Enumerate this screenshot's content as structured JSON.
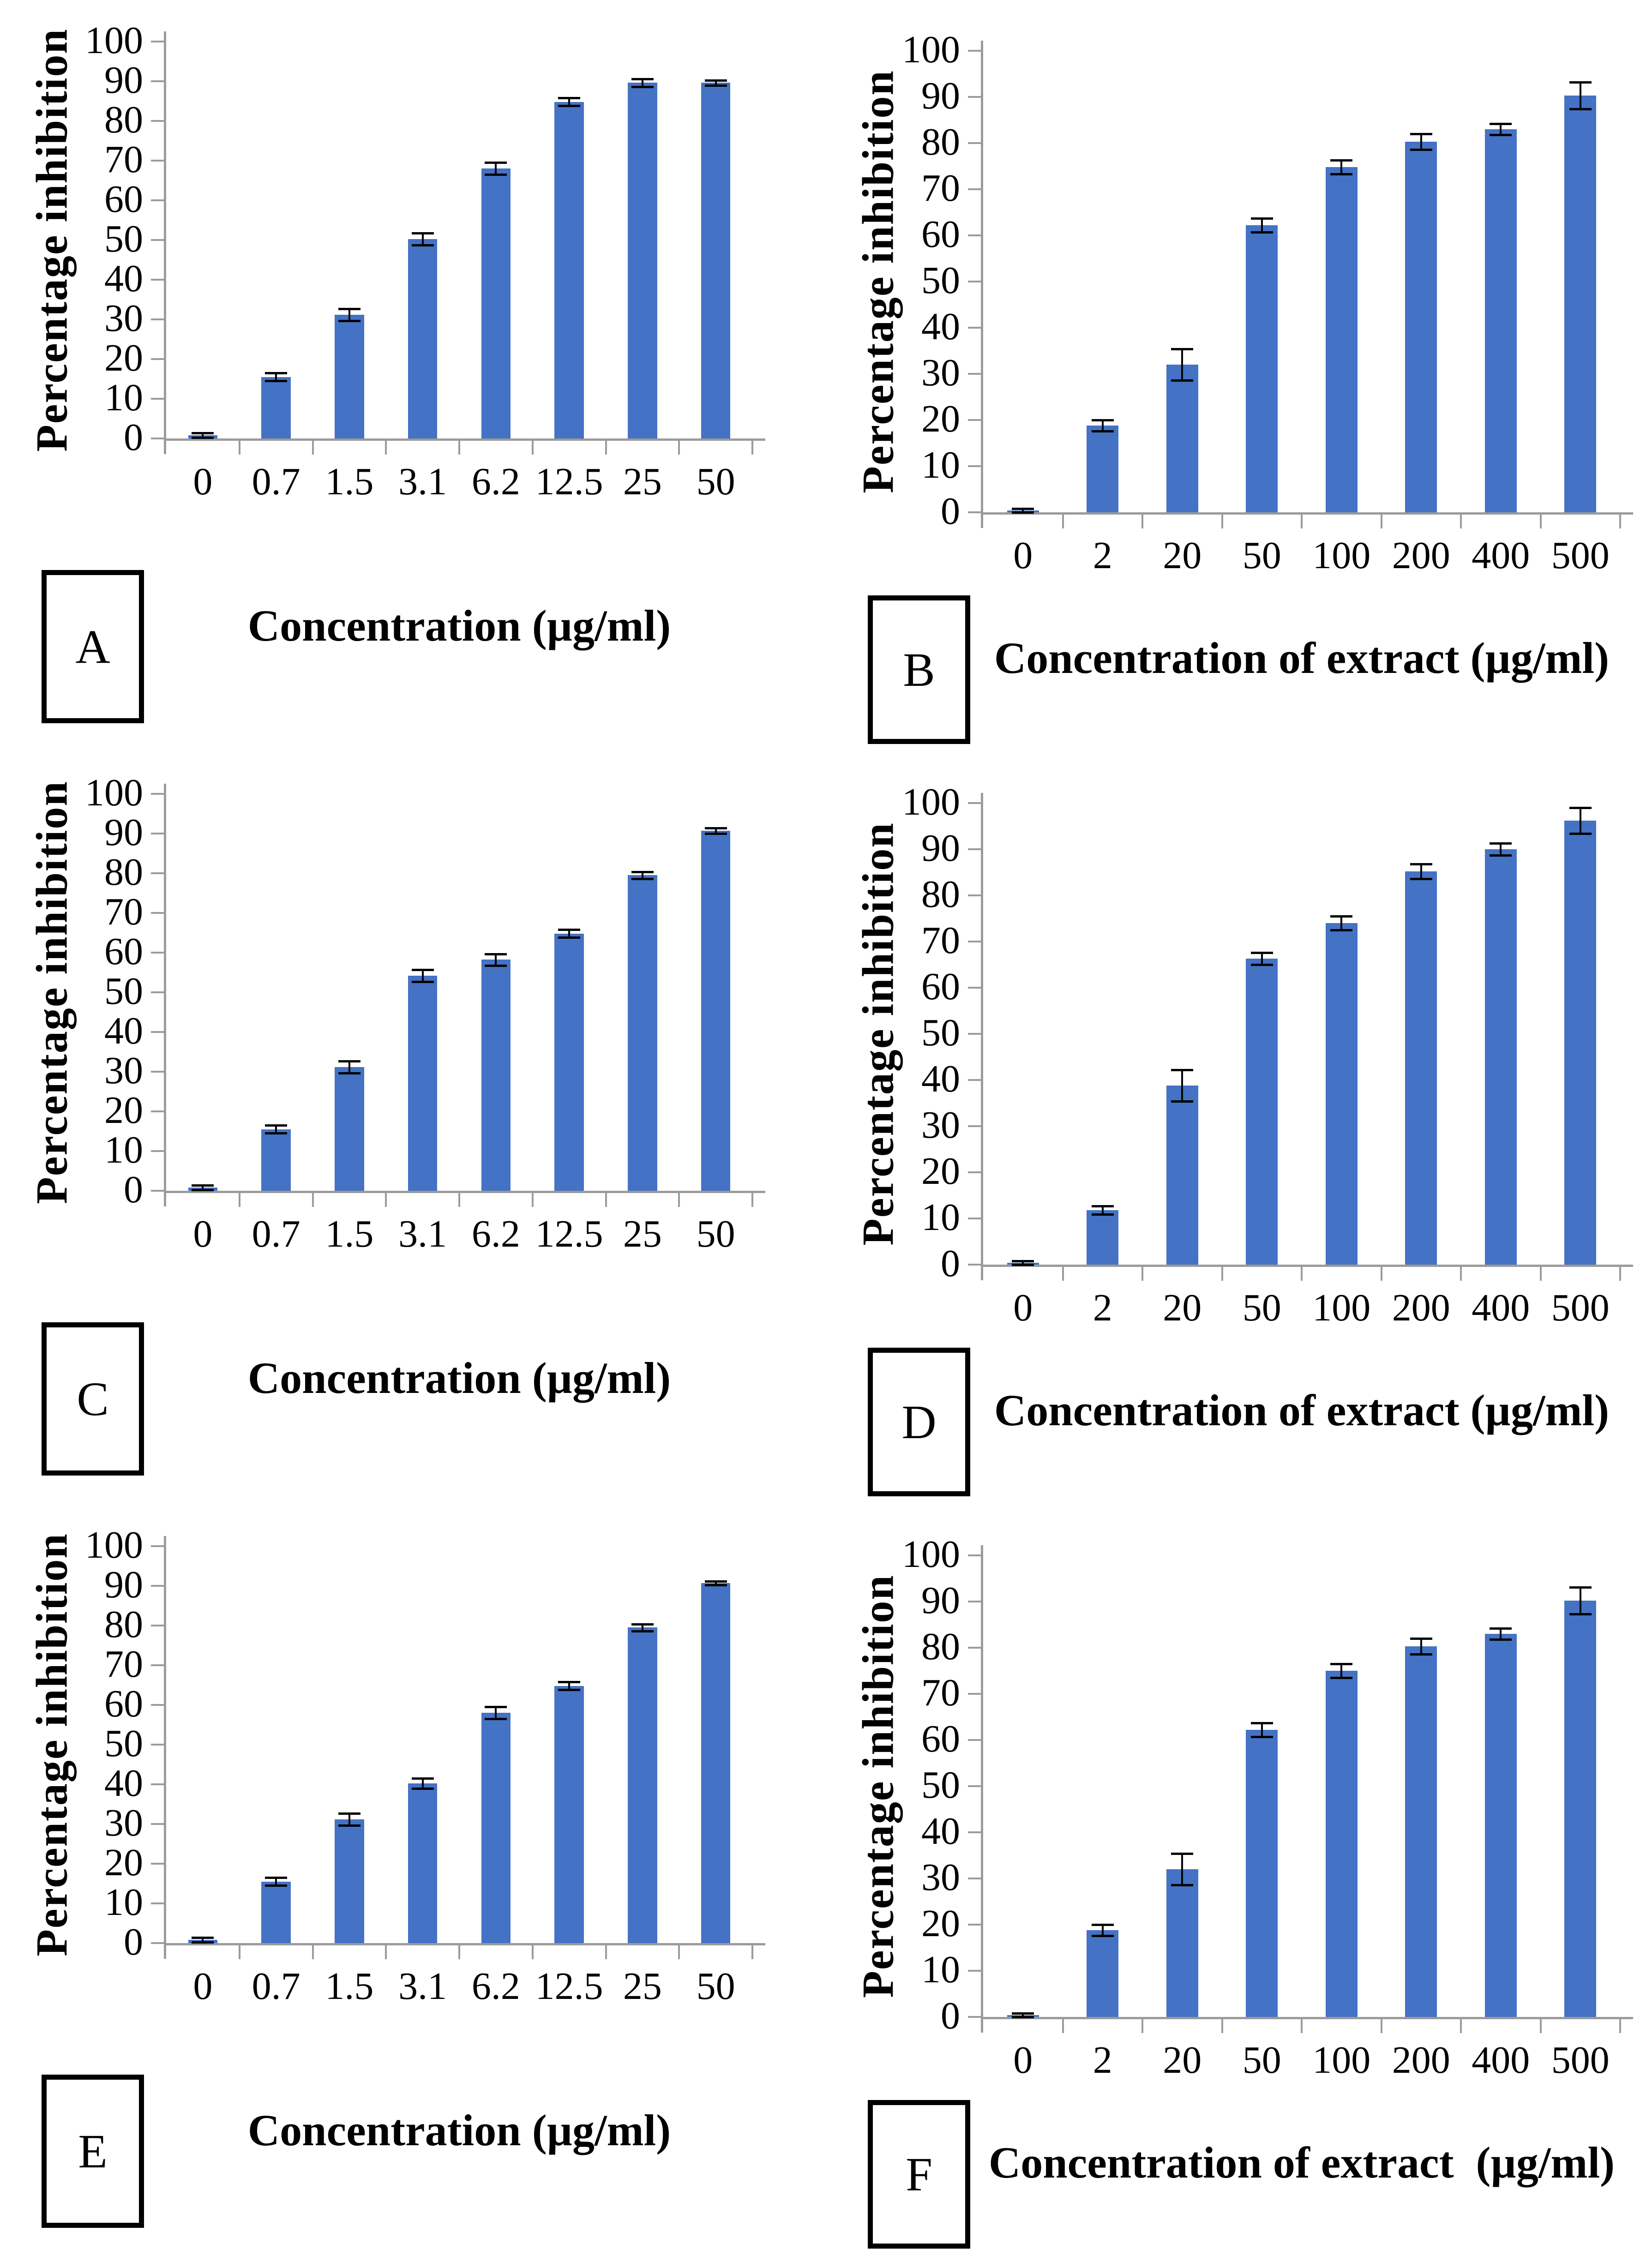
{
  "figure": {
    "bar_color": "#4472C4",
    "axis_color": "#9B9B9B",
    "error_bar_color": "#000000",
    "background_color": "#FFFFFF",
    "layout": "2 columns x 3 rows of bar charts with panel letter boxes"
  },
  "chart_data": [
    {
      "panel_label": "A",
      "type": "bar",
      "y_title": "Percentage inhibition",
      "x_title": "Concentration (µg/ml)",
      "categories": [
        "0",
        "0.7",
        "1.5",
        "3.1",
        "6.2",
        "12.5",
        "25",
        "50"
      ],
      "values": [
        0.8,
        15.5,
        31.2,
        50.2,
        68.0,
        84.8,
        89.6,
        89.6
      ],
      "errors": [
        0.6,
        1.0,
        1.5,
        1.5,
        1.5,
        1.0,
        1.0,
        0.6
      ],
      "y_ticks": [
        0,
        10,
        20,
        30,
        40,
        50,
        60,
        70,
        80,
        90,
        100
      ],
      "ylim": [
        0,
        100
      ],
      "grid": false,
      "legend": null
    },
    {
      "panel_label": "B",
      "type": "bar",
      "y_title": "Percentage inhibition",
      "x_title": "Concentration of extract (µg/ml)",
      "categories": [
        "0",
        "2",
        "20",
        "50",
        "100",
        "200",
        "400",
        "500"
      ],
      "values": [
        0.4,
        18.8,
        32.0,
        62.2,
        74.8,
        80.3,
        83.0,
        90.3
      ],
      "errors": [
        0.4,
        1.2,
        3.4,
        1.5,
        1.5,
        1.7,
        1.2,
        2.9
      ],
      "y_ticks": [
        0,
        10,
        20,
        30,
        40,
        50,
        60,
        70,
        80,
        90,
        100
      ],
      "ylim": [
        0,
        100
      ],
      "grid": false,
      "legend": null
    },
    {
      "panel_label": "C",
      "type": "bar",
      "y_title": "Percentage inhibition",
      "x_title": "Concentration (µg/ml)",
      "categories": [
        "0",
        "0.7",
        "1.5",
        "3.1",
        "6.2",
        "12.5",
        "25",
        "50"
      ],
      "values": [
        0.8,
        15.5,
        31.2,
        54.2,
        58.2,
        64.8,
        79.5,
        90.7
      ],
      "errors": [
        0.6,
        1.0,
        1.5,
        1.5,
        1.5,
        1.0,
        0.9,
        0.7
      ],
      "y_ticks": [
        0,
        10,
        20,
        30,
        40,
        50,
        60,
        70,
        80,
        90,
        100
      ],
      "ylim": [
        0,
        100
      ],
      "grid": false,
      "legend": null
    },
    {
      "panel_label": "D",
      "type": "bar",
      "y_title": "Percentage inhibition",
      "x_title": "Concentration of extract (µg/ml)",
      "categories": [
        "0",
        "2",
        "20",
        "50",
        "100",
        "200",
        "400",
        "500"
      ],
      "values": [
        0.4,
        11.8,
        38.8,
        66.3,
        74.0,
        85.2,
        90.0,
        96.2
      ],
      "errors": [
        0.4,
        0.9,
        3.4,
        1.3,
        1.5,
        1.6,
        1.3,
        2.8
      ],
      "y_ticks": [
        0,
        10,
        20,
        30,
        40,
        50,
        60,
        70,
        80,
        90,
        100
      ],
      "ylim": [
        0,
        100
      ],
      "grid": false,
      "legend": null
    },
    {
      "panel_label": "E",
      "type": "bar",
      "y_title": "Percentage inhibition",
      "x_title": "Concentration (µg/ml)",
      "categories": [
        "0",
        "0.7",
        "1.5",
        "3.1",
        "6.2",
        "12.5",
        "25",
        "50"
      ],
      "values": [
        0.8,
        15.5,
        31.2,
        40.2,
        58.0,
        64.8,
        79.5,
        90.7
      ],
      "errors": [
        0.6,
        1.0,
        1.5,
        1.3,
        1.5,
        1.0,
        0.9,
        0.5
      ],
      "y_ticks": [
        0,
        10,
        20,
        30,
        40,
        50,
        60,
        70,
        80,
        90,
        100
      ],
      "ylim": [
        0,
        100
      ],
      "grid": false,
      "legend": null
    },
    {
      "panel_label": "F",
      "type": "bar",
      "y_title": "Percentage inhibition",
      "x_title": "Concentration of extract  (µg/ml)",
      "categories": [
        "0",
        "2",
        "20",
        "50",
        "100",
        "200",
        "400",
        "500"
      ],
      "values": [
        0.4,
        18.8,
        32.0,
        62.2,
        75.0,
        80.3,
        83.0,
        90.2
      ],
      "errors": [
        0.4,
        1.2,
        3.4,
        1.5,
        1.5,
        1.7,
        1.2,
        2.9
      ],
      "y_ticks": [
        0,
        10,
        20,
        30,
        40,
        50,
        60,
        70,
        80,
        90,
        100
      ],
      "ylim": [
        0,
        100
      ],
      "grid": false,
      "legend": null
    }
  ]
}
